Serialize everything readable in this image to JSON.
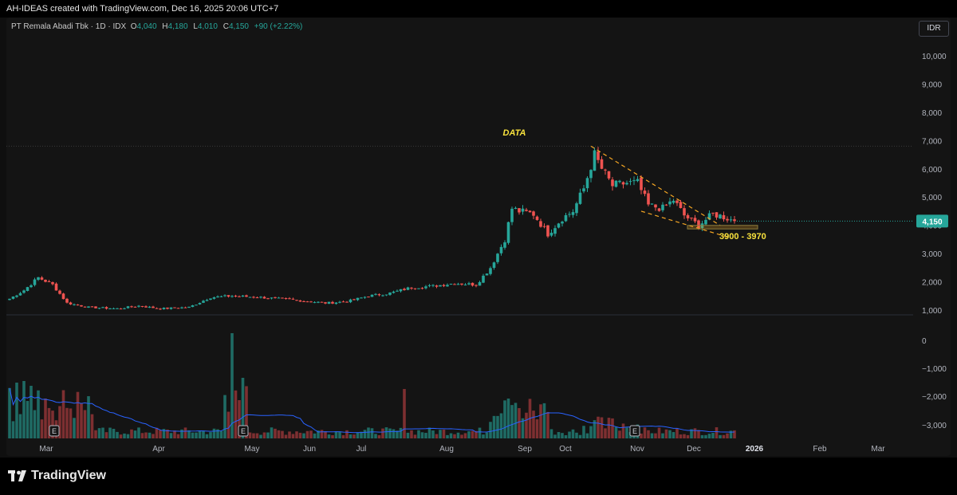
{
  "header": {
    "credit": "AH-IDEAS created with TradingView.com, Dec 16, 2025 20:06 UTC+7"
  },
  "legend": {
    "symbol": "PT Remala Abadi Tbk · 1D · IDX",
    "o_label": "O",
    "o": "4,040",
    "h_label": "H",
    "h": "4,180",
    "l_label": "L",
    "l": "4,010",
    "c_label": "C",
    "c": "4,150",
    "change": "+90 (+2.22%)"
  },
  "currency": "IDR",
  "brand": "TradingView",
  "colors": {
    "up": "#26a69a",
    "down": "#ef5350",
    "up_vol": "#1f6b64",
    "down_vol": "#7d2f31",
    "annotation": "#f5a623",
    "label": "#f7e13d",
    "ma": "#2962ff"
  },
  "icons": {
    "earnings_marker": "earnings-e-icon",
    "logo": "tradingview-logo-icon"
  },
  "chart_data": {
    "type": "candlestick",
    "price_axis": {
      "min": 1000,
      "max": 10000,
      "ticks": [
        "1,000",
        "2,000",
        "3,000",
        "4,000",
        "5,000",
        "6,000",
        "7,000",
        "8,000",
        "9,000",
        "10,000"
      ],
      "last_price_label": "4,150"
    },
    "volume_axis": {
      "ticks": [
        "0",
        "−1,000",
        "−2,000",
        "−3,000"
      ]
    },
    "time_axis": {
      "labels": [
        "Mar",
        "Apr",
        "May",
        "Jun",
        "Jul",
        "Aug",
        "Sep",
        "Oct",
        "Nov",
        "Dec",
        "2026",
        "Feb",
        "Mar"
      ],
      "bold_label": "2026"
    },
    "price_path": [
      [
        0,
        1400
      ],
      [
        4,
        1700
      ],
      [
        8,
        2150
      ],
      [
        12,
        1900
      ],
      [
        16,
        1250
      ],
      [
        22,
        1100
      ],
      [
        30,
        1050
      ],
      [
        36,
        1150
      ],
      [
        42,
        1050
      ],
      [
        50,
        1100
      ],
      [
        56,
        1450
      ],
      [
        62,
        1500
      ],
      [
        70,
        1450
      ],
      [
        80,
        1350
      ],
      [
        88,
        1250
      ],
      [
        94,
        1300
      ],
      [
        100,
        1500
      ],
      [
        106,
        1600
      ],
      [
        112,
        1800
      ],
      [
        118,
        1850
      ],
      [
        124,
        1950
      ],
      [
        130,
        1900
      ],
      [
        134,
        2500
      ],
      [
        138,
        3500
      ],
      [
        140,
        4600
      ],
      [
        142,
        4500
      ],
      [
        146,
        4400
      ],
      [
        150,
        3700
      ],
      [
        154,
        4250
      ],
      [
        157,
        4500
      ],
      [
        160,
        5300
      ],
      [
        163,
        6500
      ],
      [
        165,
        6000
      ],
      [
        168,
        5400
      ],
      [
        172,
        5500
      ],
      [
        175,
        5500
      ],
      [
        178,
        4700
      ],
      [
        182,
        4600
      ],
      [
        185,
        4900
      ],
      [
        188,
        4350
      ],
      [
        192,
        4000
      ],
      [
        196,
        4400
      ],
      [
        199,
        4300
      ],
      [
        202,
        4150
      ]
    ],
    "annotations": {
      "text_label": "DATA",
      "support_range_label": "3900 - 3970",
      "support_zone": [
        3900,
        3970
      ],
      "resistance_line": {
        "from": [
          162,
          6800
        ],
        "to": [
          198,
          4000
        ]
      },
      "support_line": {
        "from": [
          176,
          4500
        ],
        "to": [
          201,
          3550
        ]
      },
      "previous_high": 6800
    },
    "earnings_markers": [
      "E",
      "E",
      "E"
    ],
    "volume_moving_average": true
  }
}
